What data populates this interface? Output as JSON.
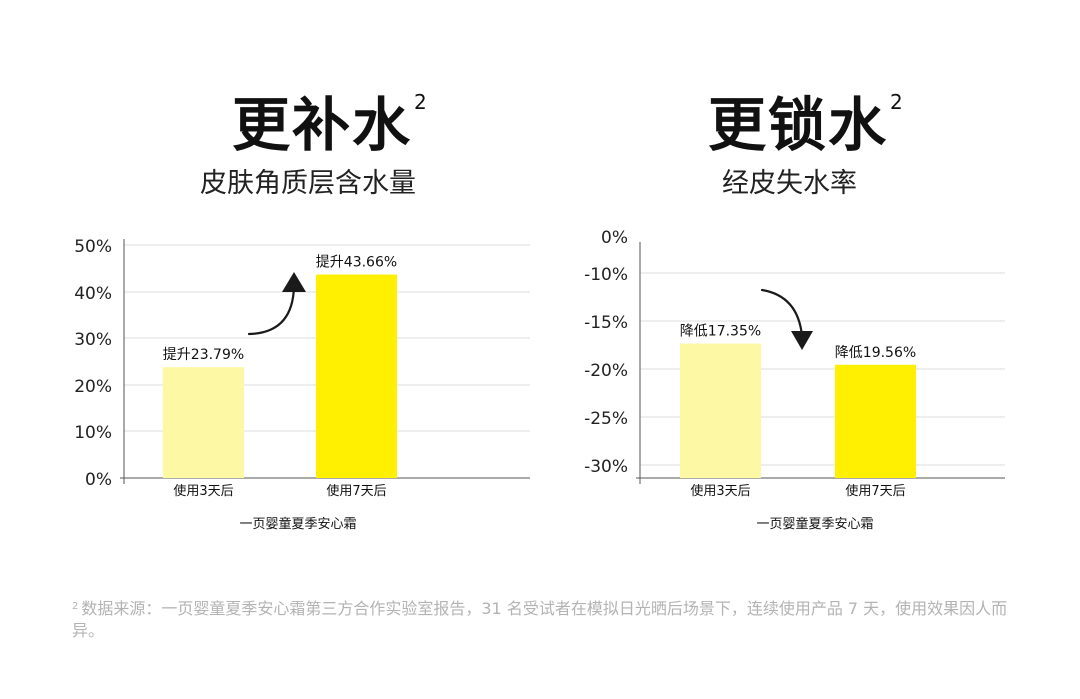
{
  "charts": [
    {
      "title": "更补水",
      "title_sup": "2",
      "subtitle": "皮肤角质层含水量"
    },
    {
      "title": "更锁水",
      "title_sup": "2",
      "subtitle": "经皮失水率"
    }
  ],
  "footnote": {
    "sup": "2",
    "text": "数据来源：一页婴童夏季安心霜第三方合作实验室报告，31 名受试者在模拟日光晒后场景下，连续使用产品 7 天，使用效果因人而异。"
  },
  "colors": {
    "bar_3day": "#fdf8a3",
    "bar_7day": "#ffef00",
    "grid": "#dddddd",
    "axis": "#555555",
    "arrow": "#1a1a1a"
  },
  "chart_data": [
    {
      "type": "bar",
      "categories": [
        "使用3天后",
        "使用7天后"
      ],
      "values": [
        23.79,
        43.66
      ],
      "data_labels": [
        "提升23.79%",
        "提升43.66%"
      ],
      "yticks": [
        "0%",
        "10%",
        "20%",
        "30%",
        "40%",
        "50%"
      ],
      "ylim": [
        0,
        50
      ],
      "xlabel": "一页婴童夏季安心霜",
      "grid": true,
      "annotation": "arrow-up"
    },
    {
      "type": "bar",
      "categories": [
        "使用3天后",
        "使用7天后"
      ],
      "values": [
        17.35,
        19.56
      ],
      "data_labels": [
        "降低17.35%",
        "降低19.56%"
      ],
      "yticks": [
        "0%",
        "-10%",
        "-15%",
        "-20%",
        "-25%",
        "-30%"
      ],
      "xlabel": "一页婴童夏季安心霜",
      "grid": true,
      "annotation": "arrow-down"
    }
  ]
}
